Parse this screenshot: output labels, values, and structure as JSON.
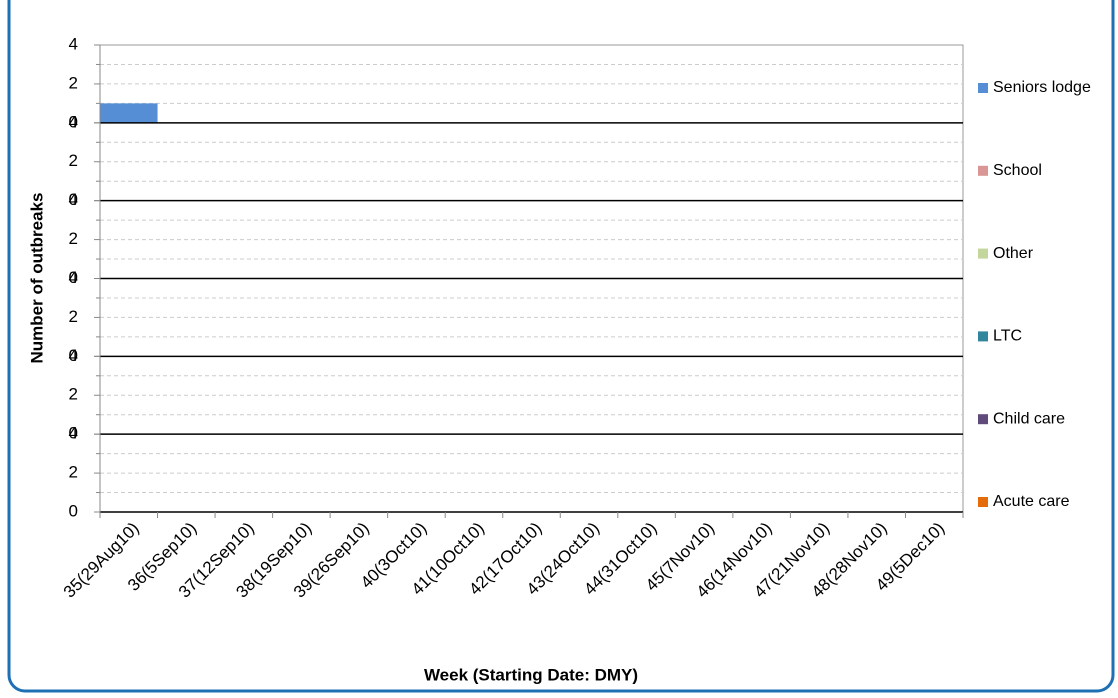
{
  "chart_data": {
    "type": "bar",
    "stacked_panels": true,
    "y_label": "Number of outbreaks",
    "x_label": "Week (Starting Date: DMY)",
    "categories": [
      "35(29Aug10)",
      "36(5Sep10)",
      "37(12Sep10)",
      "38(19Sep10)",
      "39(26Sep10)",
      "40(3Oct10)",
      "41(10Oct10)",
      "42(17Oct10)",
      "43(24Oct10)",
      "44(31Oct10)",
      "45(7Nov10)",
      "46(14Nov10)",
      "47(21Nov10)",
      "48(28Nov10)",
      "49(5Dec10)"
    ],
    "series": [
      {
        "name": "Seniors lodge",
        "color": "#558ed5",
        "values": [
          1,
          0,
          0,
          0,
          0,
          0,
          0,
          0,
          0,
          0,
          0,
          0,
          0,
          0,
          0
        ]
      },
      {
        "name": "School",
        "color": "#d99694",
        "values": [
          0,
          0,
          0,
          0,
          0,
          0,
          0,
          0,
          0,
          0,
          0,
          0,
          0,
          0,
          0
        ]
      },
      {
        "name": "Other",
        "color": "#c3d69b",
        "values": [
          0,
          0,
          0,
          0,
          0,
          0,
          0,
          0,
          0,
          0,
          0,
          0,
          0,
          0,
          0
        ]
      },
      {
        "name": "LTC",
        "color": "#31859c",
        "values": [
          0,
          0,
          0,
          0,
          0,
          0,
          0,
          0,
          0,
          0,
          0,
          0,
          0,
          0,
          0
        ]
      },
      {
        "name": "Child care",
        "color": "#604a7b",
        "values": [
          0,
          0,
          0,
          0,
          0,
          0,
          0,
          0,
          0,
          0,
          0,
          0,
          0,
          0,
          0
        ]
      },
      {
        "name": "Acute care",
        "color": "#e46c0a",
        "values": [
          0,
          0,
          0,
          0,
          0,
          0,
          0,
          0,
          0,
          0,
          0,
          0,
          0,
          0,
          0
        ]
      }
    ],
    "ylim": [
      0,
      4
    ],
    "yticks": [
      0,
      2,
      4
    ],
    "minor_yticks": [
      1,
      3
    ],
    "grid": true
  }
}
